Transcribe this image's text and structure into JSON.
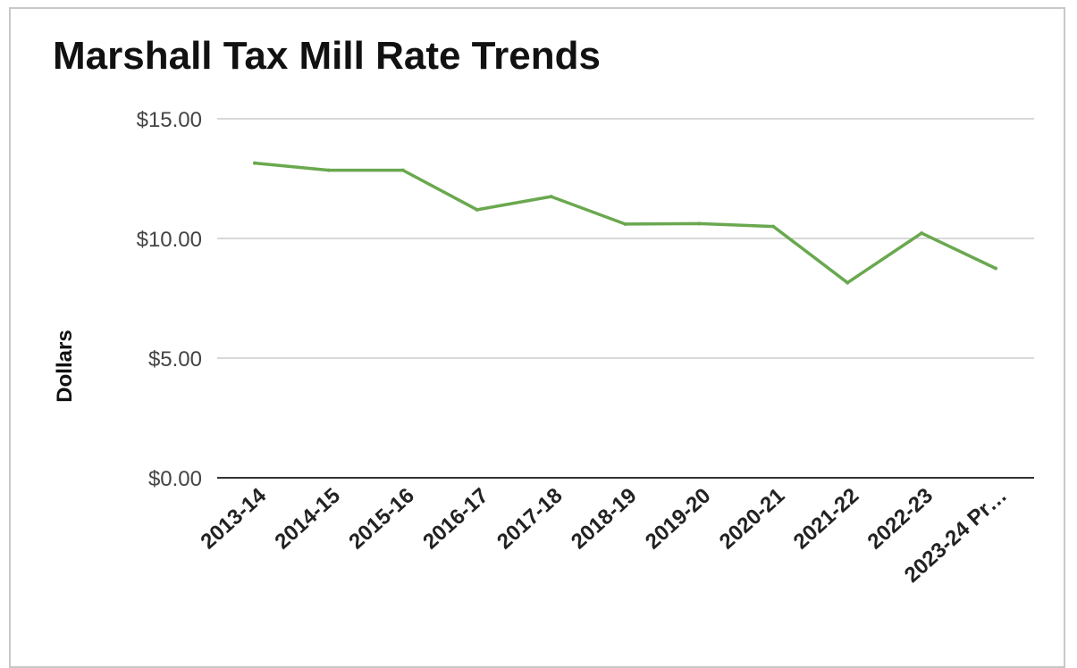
{
  "chart_data": {
    "type": "line",
    "title": "Marshall Tax Mill Rate Trends",
    "xlabel": "",
    "ylabel": "Dollars",
    "categories": [
      "2013-14",
      "2014-15",
      "2015-16",
      "2016-17",
      "2017-18",
      "2018-19",
      "2019-20",
      "2020-21",
      "2021-22",
      "2022-23",
      "2023-24 Pr…"
    ],
    "series": [
      {
        "values": [
          13.15,
          12.85,
          12.85,
          11.2,
          11.75,
          10.6,
          10.62,
          10.5,
          8.15,
          10.22,
          8.75
        ],
        "color": "#6aa84f"
      }
    ],
    "ylim": [
      0,
      15
    ],
    "yticks": [
      0,
      5,
      10,
      15
    ],
    "ytick_labels": [
      "$0.00",
      "$5.00",
      "$10.00",
      "$15.00"
    ],
    "grid": true,
    "legend": "none",
    "colors": {
      "gridline": "#cccccc",
      "baseline": "#333333"
    }
  }
}
